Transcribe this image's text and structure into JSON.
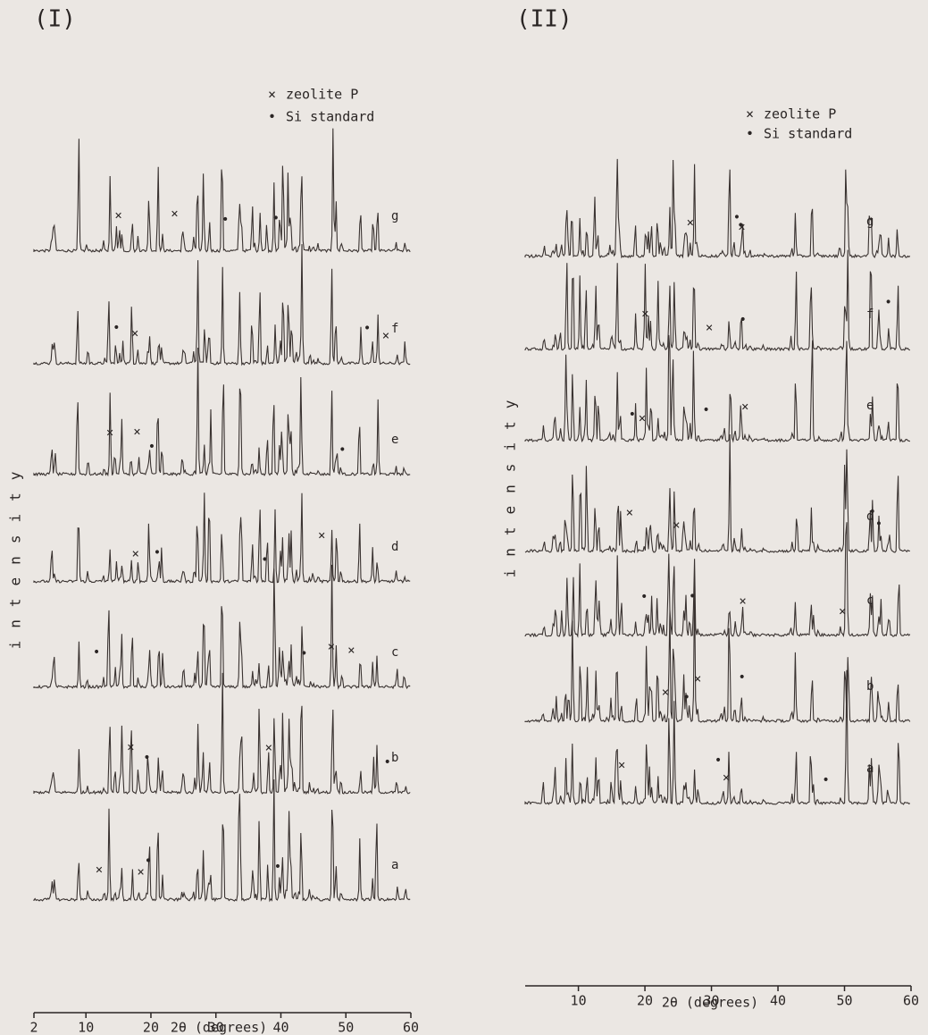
{
  "panels": [
    {
      "label": "(I)",
      "legend": [
        "zeolite P",
        "Si standard"
      ],
      "y_label": "intensity",
      "traces": [
        "g",
        "f",
        "e",
        "d",
        "c",
        "b",
        "a"
      ],
      "x_axis": {
        "label": "2θ (degrees)",
        "xlim": [
          2,
          60
        ],
        "xticks": [
          2,
          10,
          20,
          30,
          40,
          50,
          60
        ]
      }
    },
    {
      "label": "(II)",
      "legend": [
        "zeolite P",
        "Si standard"
      ],
      "y_label": "intensity",
      "traces": [
        "g",
        "f",
        "e",
        "d",
        "c",
        "b",
        "a"
      ],
      "x_axis": {
        "label": "2θ (degrees)",
        "xlim": [
          2,
          60
        ],
        "xticks": [
          10,
          20,
          30,
          40,
          50,
          60
        ]
      }
    }
  ]
}
